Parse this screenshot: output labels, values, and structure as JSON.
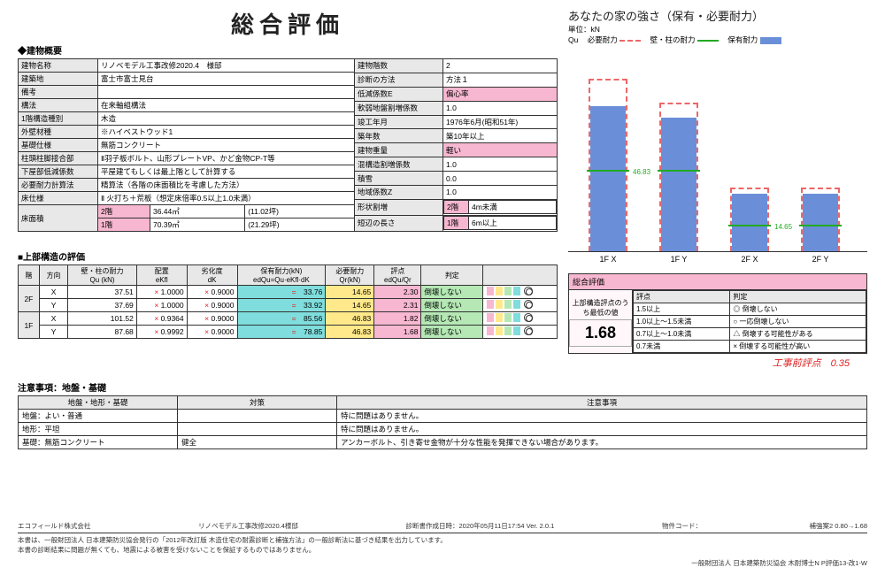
{
  "title": "総合評価",
  "chart_title": "あなたの家の強さ（保有・必要耐力）",
  "chart_unit": "単位：kN",
  "legend": {
    "qu": "Qu",
    "need": "必要耐力",
    "wall": "壁・柱の耐力",
    "have": "保有耐力"
  },
  "sec_overview": "◆建物概要",
  "sec_upper": "■上部構造の評価",
  "sec_notes": "注意事項：地盤・基礎",
  "overview_left": [
    [
      "建物名称",
      "リノベモデル工事改修2020.4　様邸"
    ],
    [
      "建築地",
      "富士市富士見台"
    ],
    [
      "備考",
      ""
    ],
    [
      "構法",
      "在来軸組構法"
    ],
    [
      "1階構造種別",
      "木造"
    ],
    [
      "外壁材種",
      "※ハイベストウッド1"
    ],
    [
      "基礎仕様",
      "無筋コンクリート"
    ],
    [
      "柱頭柱脚接合部",
      "Ⅱ羽子板ボルト、山形プレートVP、かど金物CP-T等"
    ],
    [
      "下屋部低減係数",
      "平屋建てもしくは最上階として計算する"
    ],
    [
      "必要耐力計算法",
      "精算法（各階の床面積比を考慮した方法）"
    ],
    [
      "床仕様",
      "Ⅱ 火打ち＋荒板（想定床倍率0.5以上1.0未満）"
    ]
  ],
  "floor_area": {
    "label": "床面積",
    "row2f": [
      "2階",
      "36.44㎡",
      "(11.02坪)"
    ],
    "row1f": [
      "1階",
      "70.39㎡",
      "(21.29坪)"
    ]
  },
  "overview_right": [
    [
      "建物階数",
      "2"
    ],
    [
      "診断の方法",
      "方法１"
    ],
    [
      "低減係数E",
      "偏心率",
      true
    ],
    [
      "軟弱地盤割増係数",
      "1.0"
    ],
    [
      "竣工年月",
      "1976年6月(昭和51年)"
    ],
    [
      "築年数",
      "築10年以上"
    ],
    [
      "建物重量",
      "軽い",
      true
    ],
    [
      "混構造割増係数",
      "1.0"
    ],
    [
      "積雪",
      "0.0"
    ],
    [
      "地域係数Z",
      "1.0"
    ]
  ],
  "shape_row": {
    "l": "形状割増",
    "f2l": "2階",
    "f2v": "4m未満",
    "l2": "短辺の長さ",
    "f1l": "1階",
    "f1v": "6m以上"
  },
  "eval": {
    "head": [
      "階",
      "方向",
      "壁・柱の耐力\nQu (kN)",
      "配置\neKfl",
      "劣化度\ndK",
      "保有耐力(kN)\nedQu=Qu·eKfl·dK",
      "必要耐力\nQr(kN)",
      "評点\nedQu/Qr",
      "判定"
    ],
    "rows": [
      {
        "f": "2F",
        "d": "X",
        "qu": "37.51",
        "ek": "1.0000",
        "dk": "0.9000",
        "edqu": "33.76",
        "qr": "14.65",
        "sc": "2.30",
        "j": "倒壊しない"
      },
      {
        "f": "",
        "d": "Y",
        "qu": "37.69",
        "ek": "1.0000",
        "dk": "0.9000",
        "edqu": "33.92",
        "qr": "14.65",
        "sc": "2.31",
        "j": "倒壊しない"
      },
      {
        "f": "1F",
        "d": "X",
        "qu": "101.52",
        "ek": "0.9364",
        "dk": "0.9000",
        "edqu": "85.56",
        "qr": "46.83",
        "sc": "1.82",
        "j": "倒壊しない"
      },
      {
        "f": "",
        "d": "Y",
        "qu": "87.68",
        "ek": "0.9992",
        "dk": "0.9000",
        "edqu": "78.85",
        "qr": "46.83",
        "sc": "1.68",
        "j": "倒壊しない"
      }
    ],
    "op": "×",
    "eq": "="
  },
  "chart": {
    "ymax": 120,
    "bars": [
      {
        "label": "1F X",
        "blue": 85.56,
        "red": 101.52,
        "green": 46.83,
        "gv": "46.83"
      },
      {
        "label": "1F Y",
        "blue": 78.85,
        "red": 87.68,
        "green": 46.83
      },
      {
        "label": "2F X",
        "blue": 33.76,
        "red": 37.51,
        "green": 14.65,
        "gv": "14.65"
      },
      {
        "label": "2F Y",
        "blue": 33.92,
        "red": 37.69,
        "green": 14.65
      }
    ]
  },
  "summary": {
    "hdr": "総合評価",
    "sub": "上部構造評点のうち最低の値",
    "score": "1.68",
    "h1": "評点",
    "h2": "判定",
    "rows": [
      [
        "1.5以上",
        "◎ 倒壊しない"
      ],
      [
        "1.0以上～1.5未満",
        "○ 一応倒壊しない"
      ],
      [
        "0.7以上～1.0未満",
        "△ 倒壊する可能性がある"
      ],
      [
        "0.7未満",
        "× 倒壊する可能性が高い"
      ]
    ]
  },
  "handwrite": "工事前評点　0.35",
  "notes": {
    "head": [
      "地盤・地形・基礎",
      "対策",
      "注意事項"
    ],
    "rows": [
      [
        "地盤：よい・普通",
        "",
        "特に問題はありません。"
      ],
      [
        "地形：平坦",
        "",
        "特に問題はありません。"
      ],
      [
        "基礎：無筋コンクリート",
        "健全",
        "アンカーボルト、引き寄せ金物が十分な性能を発揮できない場合があります。"
      ]
    ]
  },
  "footer": {
    "company": "エコフィールド株式会社",
    "proj": "リノベモデル工事改修2020.4様邸",
    "ts": "診断書作成日時：2020年05月11日17:54  Ver. 2.0.1",
    "code": "物件コード：",
    "rev": "補強案2 0.80→1.68",
    "disc1": "本書は、一般財団法人 日本建築防災協会発行の「2012年改訂版 木造住宅の耐震診断と補強方法」の一般診断法に基づき結果を出力しています。",
    "disc2": "本書の診断結果に問題が無くても、地震による被害を受けないことを保証するものではありません。",
    "credit": "一般財団法人 日本建築防災協会 木耐博士N P評価13-改1-W"
  }
}
